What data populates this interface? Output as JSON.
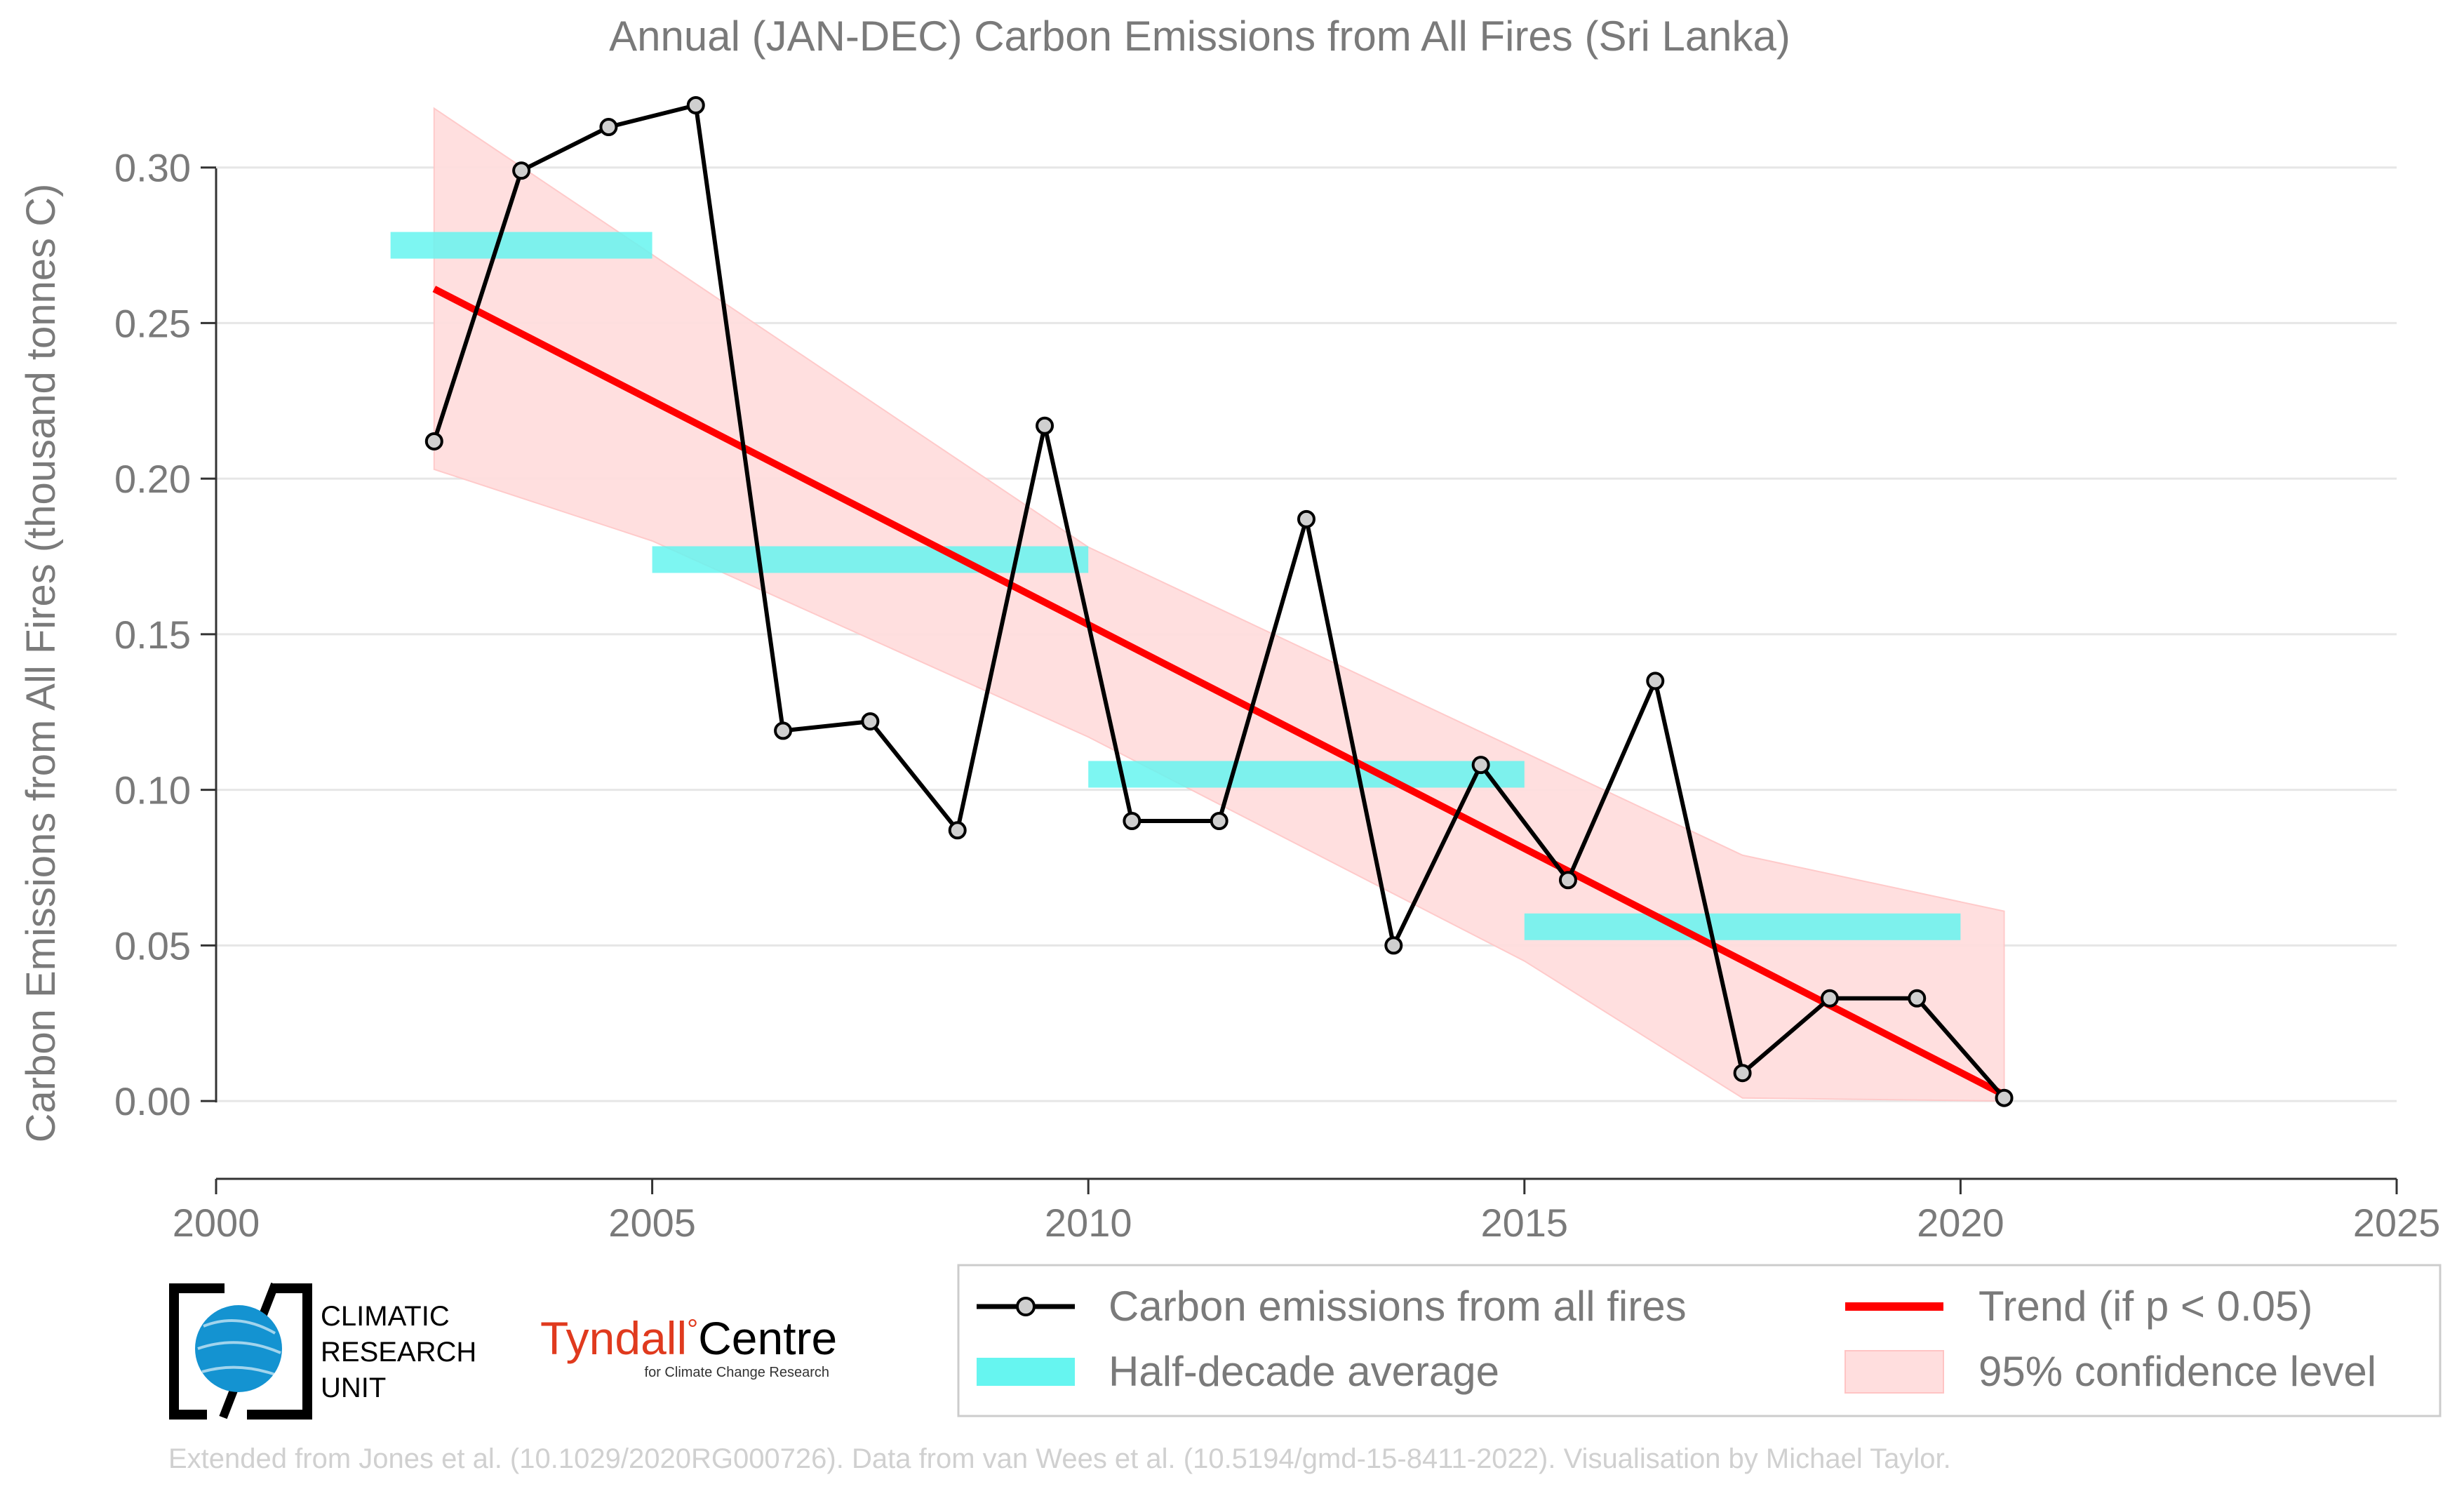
{
  "colors": {
    "series": "#000000",
    "marker_fill": "#cfcfcf",
    "trend": "#ff0000",
    "half_decade": "#66f5f0",
    "confidence": "#ffdede",
    "grid": "#e6e6e6",
    "text": "#7a7a7a",
    "footer": "#d0d0d0",
    "tyndall_red": "#e03a1e",
    "cru_blue": "#1493d1"
  },
  "logos": {
    "cru": {
      "icon": "globe-icon",
      "lines": [
        "CLIMATIC",
        "RESEARCH",
        "UNIT"
      ]
    },
    "tyndall": {
      "name_part1": "Tyndall",
      "degree": "°",
      "name_part2": "Centre",
      "subtitle": "for Climate Change Research"
    }
  },
  "footer": "Extended from Jones et al. (10.1029/2020RG000726). Data from van Wees et al. (10.5194/gmd-15-8411-2022). Visualisation by Michael Taylor.",
  "chart_data": {
    "type": "line",
    "title": "Annual (JAN-DEC) Carbon Emissions from All Fires (Sri Lanka)",
    "xlabel": "",
    "ylabel": "Carbon Emissions from All Fires (thousand tonnes C)",
    "xlim": [
      2000,
      2025
    ],
    "ylim": [
      -0.025,
      0.32
    ],
    "xticks": [
      2000,
      2005,
      2010,
      2015,
      2020,
      2025
    ],
    "yticks": [
      0.0,
      0.05,
      0.1,
      0.15,
      0.2,
      0.25,
      0.3
    ],
    "ytick_labels": [
      "0.00",
      "0.05",
      "0.10",
      "0.15",
      "0.20",
      "0.25",
      "0.30"
    ],
    "grid": "horizontal",
    "legend_position": "bottom",
    "series": [
      {
        "name": "Carbon emissions from all fires",
        "x": [
          2002.5,
          2003.5,
          2004.5,
          2005.5,
          2006.5,
          2007.5,
          2008.5,
          2009.5,
          2010.5,
          2011.5,
          2012.5,
          2013.5,
          2014.5,
          2015.5,
          2016.5,
          2017.5,
          2018.5,
          2019.5,
          2020.5
        ],
        "values": [
          0.212,
          0.299,
          0.313,
          0.32,
          0.119,
          0.122,
          0.087,
          0.217,
          0.09,
          0.09,
          0.187,
          0.05,
          0.108,
          0.071,
          0.135,
          0.009,
          0.033,
          0.033,
          0.001
        ]
      }
    ],
    "half_decade_average": {
      "name": "Half-decade average",
      "segments": [
        {
          "x0": 2002,
          "x1": 2005,
          "value": 0.275
        },
        {
          "x0": 2005,
          "x1": 2010,
          "value": 0.174
        },
        {
          "x0": 2010,
          "x1": 2015,
          "value": 0.105
        },
        {
          "x0": 2015,
          "x1": 2020,
          "value": 0.056
        }
      ]
    },
    "trend": {
      "name": "Trend (if p < 0.05)",
      "x": [
        2002.5,
        2020.5
      ],
      "values": [
        0.261,
        0.002
      ]
    },
    "confidence": {
      "name": "95% confidence level",
      "x": [
        2002.5,
        2005,
        2010,
        2015,
        2017.5,
        2020.5
      ],
      "upper": [
        0.319,
        0.272,
        0.178,
        0.112,
        0.079,
        0.061
      ],
      "lower": [
        0.203,
        0.18,
        0.117,
        0.045,
        0.001,
        0.0
      ]
    }
  }
}
